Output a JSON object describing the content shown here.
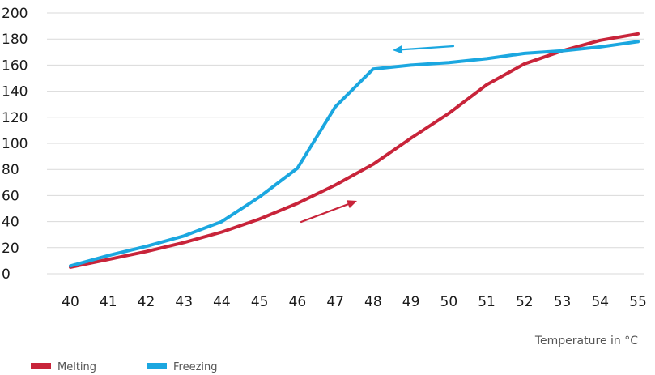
{
  "chart_data": {
    "type": "line",
    "title": "",
    "xlabel": "Temperature in °C",
    "ylabel": "",
    "x": [
      40,
      41,
      42,
      43,
      44,
      45,
      46,
      47,
      48,
      49,
      50,
      51,
      52,
      53,
      54,
      55
    ],
    "ylim": [
      0,
      200
    ],
    "yticks": [
      0,
      20,
      40,
      60,
      80,
      100,
      120,
      140,
      160,
      180,
      200
    ],
    "grid": true,
    "legend_position": "bottom-left",
    "series": [
      {
        "name": "Melting",
        "color": "#c8243a",
        "values": [
          5,
          11,
          17,
          24,
          32,
          42,
          54,
          68,
          84,
          104,
          123,
          145,
          161,
          171,
          179,
          184
        ],
        "direction": "increasing-temperature"
      },
      {
        "name": "Freezing",
        "color": "#1ba7e0",
        "values": [
          6,
          14,
          21,
          29,
          40,
          59,
          81,
          128,
          157,
          160,
          162,
          165,
          169,
          171,
          174,
          178
        ],
        "direction": "decreasing-temperature"
      }
    ],
    "annotations": [
      {
        "type": "arrow",
        "series": "Freezing",
        "direction": "left"
      },
      {
        "type": "arrow",
        "series": "Melting",
        "direction": "up-right"
      }
    ]
  }
}
